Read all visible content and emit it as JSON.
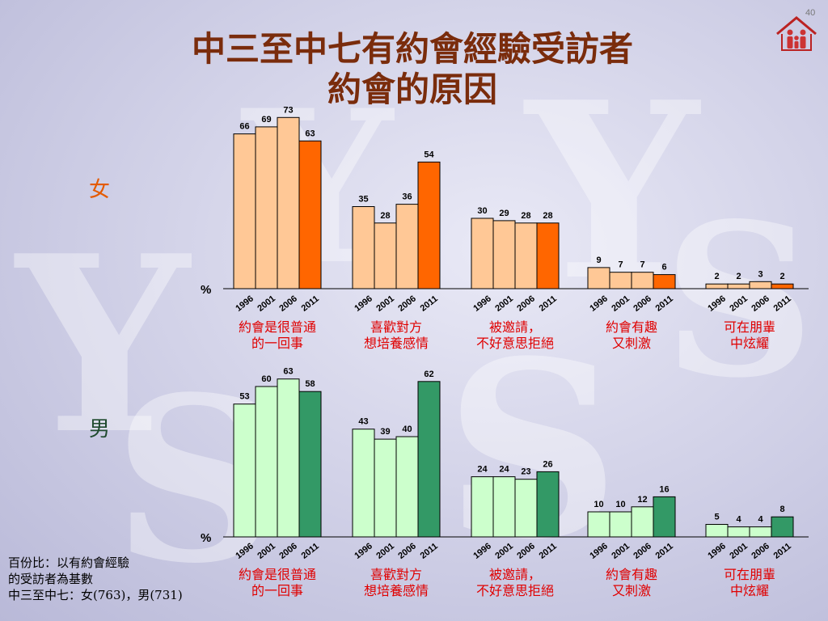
{
  "slide_number": "40",
  "title_lines": [
    "中三至中七有約會經驗受訪者",
    "約會的原因"
  ],
  "footnote_lines": [
    "百份比：以有約會經驗",
    "的受訪者為基數",
    "中三至中七：女(763)，男(731)"
  ],
  "icons": {
    "logo": "family-house-logo-icon"
  },
  "colors": {
    "female_light": "#ffc896",
    "female_dark": "#ff6600",
    "male_light": "#ccffcc",
    "male_dark": "#339966",
    "category_label": "#e00000",
    "bar_stroke": "#000000"
  },
  "chart_data": [
    {
      "type": "bar",
      "panel": "female",
      "panel_label": "女",
      "unit_label": "%",
      "years": [
        "1996",
        "2001",
        "2006",
        "2011"
      ],
      "categories": [
        {
          "label_lines": [
            "約會是很普通",
            "的一回事"
          ],
          "values": [
            66,
            69,
            73,
            63
          ]
        },
        {
          "label_lines": [
            "喜歡對方",
            "想培養感情"
          ],
          "values": [
            35,
            28,
            36,
            54
          ]
        },
        {
          "label_lines": [
            "被邀請，",
            "不好意思拒絕"
          ],
          "values": [
            30,
            29,
            28,
            28
          ]
        },
        {
          "label_lines": [
            "約會有趣",
            "又刺激"
          ],
          "values": [
            9,
            7,
            7,
            6
          ]
        },
        {
          "label_lines": [
            "可在朋輩",
            "中炫耀"
          ],
          "values": [
            2,
            2,
            3,
            2
          ]
        }
      ],
      "ylim": [
        0,
        80
      ],
      "grid": false
    },
    {
      "type": "bar",
      "panel": "male",
      "panel_label": "男",
      "unit_label": "%",
      "years": [
        "1996",
        "2001",
        "2006",
        "2011"
      ],
      "categories": [
        {
          "label_lines": [
            "約會是很普通",
            "的一回事"
          ],
          "values": [
            53,
            60,
            63,
            58
          ]
        },
        {
          "label_lines": [
            "喜歡對方",
            "想培養感情"
          ],
          "values": [
            43,
            39,
            40,
            62
          ]
        },
        {
          "label_lines": [
            "被邀請，",
            "不好意思拒絕"
          ],
          "values": [
            24,
            24,
            23,
            26
          ]
        },
        {
          "label_lines": [
            "約會有趣",
            "又刺激"
          ],
          "values": [
            10,
            10,
            12,
            16
          ]
        },
        {
          "label_lines": [
            "可在朋輩",
            "中炫耀"
          ],
          "values": [
            5,
            4,
            4,
            8
          ]
        }
      ],
      "ylim": [
        0,
        70
      ],
      "grid": false
    }
  ]
}
